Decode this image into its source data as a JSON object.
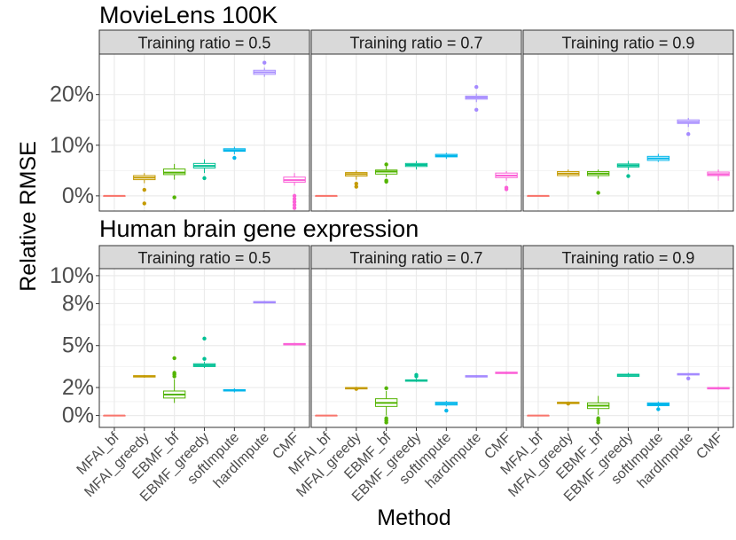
{
  "ylabel": "Relative RMSE",
  "xlabel": "Method",
  "methods": [
    "MFAI_bf",
    "MFAI_greedy",
    "EBMF_bf",
    "EBMF_greedy",
    "softImpute",
    "hardImpute",
    "CMF"
  ],
  "colors": [
    "#F8766D",
    "#C49A00",
    "#53B400",
    "#00C094",
    "#00B6EB",
    "#A58AFF",
    "#FB61D7"
  ],
  "facet_label_prefix": "Training ratio = ",
  "chart_data": [
    {
      "type": "boxplot",
      "title": "MovieLens 100K",
      "yticks": [
        {
          "value": 0,
          "label": "0%"
        },
        {
          "value": 10,
          "label": "10%"
        },
        {
          "value": 20,
          "label": "20%"
        }
      ],
      "ylim": [
        -3,
        28
      ],
      "facets": [
        {
          "ratio": "0.5",
          "boxes": [
            {
              "method": "MFAI_bf",
              "min": 0,
              "q1": 0,
              "median": 0,
              "q3": 0,
              "max": 0,
              "outliers": []
            },
            {
              "method": "MFAI_greedy",
              "min": 2.5,
              "q1": 3.2,
              "median": 3.6,
              "q3": 4.0,
              "max": 4.5,
              "outliers": [
                1.2,
                -1.5
              ]
            },
            {
              "method": "EBMF_bf",
              "min": 3.2,
              "q1": 4.2,
              "median": 4.6,
              "q3": 5.3,
              "max": 6.3,
              "outliers": [
                -0.3
              ]
            },
            {
              "method": "EBMF_greedy",
              "min": 4.5,
              "q1": 5.5,
              "median": 5.9,
              "q3": 6.4,
              "max": 7.2,
              "outliers": [
                3.5
              ]
            },
            {
              "method": "softImpute",
              "min": 8.2,
              "q1": 8.8,
              "median": 9.0,
              "q3": 9.3,
              "max": 9.7,
              "outliers": [
                7.5
              ]
            },
            {
              "method": "hardImpute",
              "min": 23.5,
              "q1": 24.0,
              "median": 24.4,
              "q3": 24.8,
              "max": 25.3,
              "outliers": [
                26.3
              ]
            },
            {
              "method": "CMF",
              "min": 2.0,
              "q1": 2.7,
              "median": 3.1,
              "q3": 3.7,
              "max": 4.5,
              "outliers": [
                0,
                -0.6,
                -1.2,
                -1.8,
                -2.4
              ]
            }
          ]
        },
        {
          "ratio": "0.7",
          "boxes": [
            {
              "method": "MFAI_bf",
              "min": 0,
              "q1": 0,
              "median": 0,
              "q3": 0,
              "max": 0,
              "outliers": []
            },
            {
              "method": "MFAI_greedy",
              "min": 3.2,
              "q1": 3.9,
              "median": 4.3,
              "q3": 4.6,
              "max": 5.0,
              "outliers": [
                2.4,
                1.8
              ]
            },
            {
              "method": "EBMF_bf",
              "min": 3.7,
              "q1": 4.3,
              "median": 4.8,
              "q3": 5.1,
              "max": 5.8,
              "outliers": [
                3.0,
                2.8,
                6.2
              ]
            },
            {
              "method": "EBMF_greedy",
              "min": 5.2,
              "q1": 5.8,
              "median": 6.1,
              "q3": 6.4,
              "max": 6.9,
              "outliers": []
            },
            {
              "method": "softImpute",
              "min": 7.3,
              "q1": 7.7,
              "median": 7.9,
              "q3": 8.2,
              "max": 8.5,
              "outliers": []
            },
            {
              "method": "hardImpute",
              "min": 18.5,
              "q1": 19.1,
              "median": 19.4,
              "q3": 19.7,
              "max": 20.2,
              "outliers": [
                17.0,
                21.5
              ]
            },
            {
              "method": "CMF",
              "min": 3.0,
              "q1": 3.6,
              "median": 4.0,
              "q3": 4.5,
              "max": 4.9,
              "outliers": [
                1.6,
                1.3
              ]
            }
          ]
        },
        {
          "ratio": "0.9",
          "boxes": [
            {
              "method": "MFAI_bf",
              "min": 0,
              "q1": 0,
              "median": 0,
              "q3": 0,
              "max": 0,
              "outliers": []
            },
            {
              "method": "MFAI_greedy",
              "min": 3.6,
              "q1": 4.0,
              "median": 4.4,
              "q3": 4.8,
              "max": 5.2,
              "outliers": []
            },
            {
              "method": "EBMF_bf",
              "min": 3.4,
              "q1": 4.0,
              "median": 4.4,
              "q3": 4.8,
              "max": 5.2,
              "outliers": [
                0.6
              ]
            },
            {
              "method": "EBMF_greedy",
              "min": 5.1,
              "q1": 5.7,
              "median": 6.0,
              "q3": 6.3,
              "max": 6.9,
              "outliers": [
                3.9
              ]
            },
            {
              "method": "softImpute",
              "min": 6.7,
              "q1": 7.0,
              "median": 7.4,
              "q3": 7.8,
              "max": 8.3,
              "outliers": []
            },
            {
              "method": "hardImpute",
              "min": 13.6,
              "q1": 14.3,
              "median": 14.6,
              "q3": 15.0,
              "max": 15.4,
              "outliers": [
                12.2
              ]
            },
            {
              "method": "CMF",
              "min": 3.0,
              "q1": 4.0,
              "median": 4.3,
              "q3": 4.7,
              "max": 5.2,
              "outliers": []
            }
          ]
        }
      ]
    },
    {
      "type": "boxplot",
      "title": "Human brain gene expression",
      "yticks": [
        {
          "value": 0,
          "label": "0%"
        },
        {
          "value": 2,
          "label": "2%"
        },
        {
          "value": 5,
          "label": "5%"
        },
        {
          "value": 8,
          "label": "8%"
        },
        {
          "value": 10,
          "label": "10%"
        }
      ],
      "ylim": [
        -0.85,
        10.5
      ],
      "facets": [
        {
          "ratio": "0.5",
          "boxes": [
            {
              "method": "MFAI_bf",
              "min": 0,
              "q1": 0,
              "median": 0,
              "q3": 0,
              "max": 0,
              "outliers": []
            },
            {
              "method": "MFAI_greedy",
              "min": 2.7,
              "q1": 2.75,
              "median": 2.8,
              "q3": 2.85,
              "max": 2.9,
              "outliers": []
            },
            {
              "method": "EBMF_bf",
              "min": 0.9,
              "q1": 1.25,
              "median": 1.5,
              "q3": 1.75,
              "max": 2.6,
              "outliers": [
                2.8,
                2.95,
                3.05,
                4.1
              ]
            },
            {
              "method": "EBMF_greedy",
              "min": 3.4,
              "q1": 3.5,
              "median": 3.6,
              "q3": 3.7,
              "max": 3.85,
              "outliers": [
                4.05,
                5.5
              ]
            },
            {
              "method": "softImpute",
              "min": 1.65,
              "q1": 1.75,
              "median": 1.8,
              "q3": 1.85,
              "max": 1.95,
              "outliers": []
            },
            {
              "method": "hardImpute",
              "min": 8.0,
              "q1": 8.05,
              "median": 8.1,
              "q3": 8.15,
              "max": 8.2,
              "outliers": []
            },
            {
              "method": "CMF",
              "min": 5.0,
              "q1": 5.05,
              "median": 5.1,
              "q3": 5.15,
              "max": 5.2,
              "outliers": []
            }
          ]
        },
        {
          "ratio": "0.7",
          "boxes": [
            {
              "method": "MFAI_bf",
              "min": 0,
              "q1": 0,
              "median": 0,
              "q3": 0,
              "max": 0,
              "outliers": []
            },
            {
              "method": "MFAI_greedy",
              "min": 1.85,
              "q1": 1.9,
              "median": 1.95,
              "q3": 2.0,
              "max": 2.05,
              "outliers": [
                1.9
              ]
            },
            {
              "method": "EBMF_bf",
              "min": 0.0,
              "q1": 0.65,
              "median": 0.9,
              "q3": 1.2,
              "max": 1.75,
              "outliers": [
                -0.2,
                -0.35,
                -0.5,
                1.95
              ]
            },
            {
              "method": "EBMF_greedy",
              "min": 2.4,
              "q1": 2.45,
              "median": 2.5,
              "q3": 2.55,
              "max": 2.65,
              "outliers": [
                2.8,
                2.9
              ]
            },
            {
              "method": "softImpute",
              "min": 0.65,
              "q1": 0.75,
              "median": 0.85,
              "q3": 0.95,
              "max": 1.05,
              "outliers": [
                0.35
              ]
            },
            {
              "method": "hardImpute",
              "min": 2.7,
              "q1": 2.75,
              "median": 2.8,
              "q3": 2.85,
              "max": 2.9,
              "outliers": []
            },
            {
              "method": "CMF",
              "min": 2.95,
              "q1": 3.0,
              "median": 3.05,
              "q3": 3.1,
              "max": 3.15,
              "outliers": []
            }
          ]
        },
        {
          "ratio": "0.9",
          "boxes": [
            {
              "method": "MFAI_bf",
              "min": 0,
              "q1": 0,
              "median": 0,
              "q3": 0,
              "max": 0,
              "outliers": []
            },
            {
              "method": "MFAI_greedy",
              "min": 0.8,
              "q1": 0.85,
              "median": 0.9,
              "q3": 0.95,
              "max": 1.0,
              "outliers": [
                0.85
              ]
            },
            {
              "method": "EBMF_bf",
              "min": 0.05,
              "q1": 0.5,
              "median": 0.7,
              "q3": 0.9,
              "max": 1.4,
              "outliers": [
                -0.2,
                -0.35,
                -0.5
              ]
            },
            {
              "method": "EBMF_greedy",
              "min": 2.75,
              "q1": 2.8,
              "median": 2.9,
              "q3": 2.95,
              "max": 3.05,
              "outliers": []
            },
            {
              "method": "softImpute",
              "min": 0.6,
              "q1": 0.7,
              "median": 0.8,
              "q3": 0.9,
              "max": 1.0,
              "outliers": [
                0.45
              ]
            },
            {
              "method": "hardImpute",
              "min": 2.85,
              "q1": 2.9,
              "median": 2.95,
              "q3": 3.0,
              "max": 3.05,
              "outliers": [
                2.65
              ]
            },
            {
              "method": "CMF",
              "min": 1.85,
              "q1": 1.9,
              "median": 1.95,
              "q3": 2.0,
              "max": 2.05,
              "outliers": []
            }
          ]
        }
      ]
    }
  ]
}
